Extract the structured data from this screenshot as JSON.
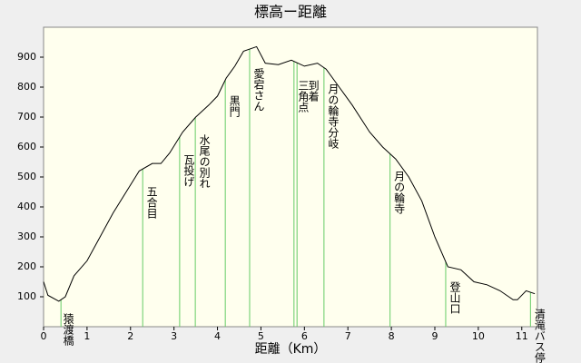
{
  "chart_data": {
    "type": "line",
    "title": "標高ー距離",
    "x_label": "距離（Km）",
    "x": [
      0,
      0.1,
      0.35,
      0.5,
      0.7,
      1.0,
      1.3,
      1.6,
      1.9,
      2.2,
      2.5,
      2.7,
      2.9,
      3.2,
      3.5,
      3.8,
      4.0,
      4.2,
      4.4,
      4.6,
      4.9,
      5.1,
      5.4,
      5.7,
      6.0,
      6.3,
      6.5,
      6.8,
      7.1,
      7.5,
      7.8,
      8.1,
      8.4,
      8.7,
      9.0,
      9.3,
      9.6,
      9.9,
      10.2,
      10.5,
      10.8,
      10.9,
      11.1,
      11.3
    ],
    "values": [
      150,
      105,
      85,
      100,
      170,
      220,
      300,
      380,
      450,
      520,
      545,
      545,
      580,
      650,
      700,
      740,
      770,
      830,
      870,
      920,
      935,
      880,
      875,
      890,
      870,
      880,
      860,
      800,
      740,
      650,
      600,
      560,
      500,
      420,
      300,
      200,
      190,
      150,
      140,
      120,
      90,
      90,
      120,
      110
    ],
    "color": "#000000",
    "waypoints": [
      {
        "x": 0.4,
        "name": "猿渡橋"
      },
      {
        "x": 2.28,
        "name": "五合目"
      },
      {
        "x": 3.13,
        "name": "瓦投げ"
      },
      {
        "x": 3.49,
        "name": "水尾の別れ"
      },
      {
        "x": 4.18,
        "name": "黒門"
      },
      {
        "x": 4.74,
        "name": "愛宕さん"
      },
      {
        "x": 5.76,
        "name": "三角点"
      },
      {
        "x": 5.83,
        "name": "到着"
      },
      {
        "x": 6.45,
        "name": "月の輪寺分岐"
      },
      {
        "x": 7.97,
        "name": "月の輪寺"
      },
      {
        "x": 9.25,
        "name": "登山口"
      },
      {
        "x": 11.2,
        "name": "清滝バス停"
      }
    ],
    "waypoint_color": "#66cc66",
    "xlim": [
      0,
      11.36
    ],
    "xticks": [
      0,
      1,
      2,
      3,
      4,
      5,
      6,
      7,
      8,
      9,
      10,
      11
    ],
    "ylim": [
      0,
      1000
    ],
    "yticks": [
      100,
      200,
      300,
      400,
      500,
      600,
      700,
      800,
      900
    ]
  }
}
